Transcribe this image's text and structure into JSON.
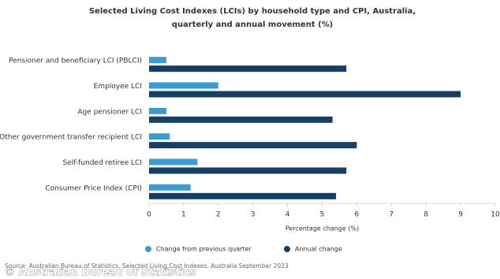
{
  "chart_data": {
    "type": "hbar",
    "title": "Selected Living Cost Indexes (LCIs) by household type and CPI, Australia, quarterly and annual movement (%)",
    "categories": [
      "Pensioner and beneficiary LCI (PBLCI)",
      "Employee LCI",
      "Age pensioner LCI",
      "Other government transfer recipient LCI",
      "Self-funded retiree LCI",
      "Consumer Price Index (CPI)"
    ],
    "series": [
      {
        "name": "Change from previous quarter",
        "color": "#3c9bd3",
        "values": [
          0.5,
          2.0,
          0.5,
          0.6,
          1.4,
          1.2
        ]
      },
      {
        "name": "Annual change",
        "color": "#173f63",
        "values": [
          5.7,
          9.0,
          5.3,
          6.0,
          5.7,
          5.4
        ]
      }
    ],
    "xlim": [
      0,
      10
    ],
    "xticks": [
      0,
      1,
      2,
      3,
      4,
      5,
      6,
      7,
      8,
      9,
      10
    ],
    "x_label": "Percentage change (%)",
    "source": "Source: Australian Bureau of Statistics, Selected Living Cost Indexes, Australia September 2023",
    "watermark": "© Australian Bureau of Statistics"
  }
}
